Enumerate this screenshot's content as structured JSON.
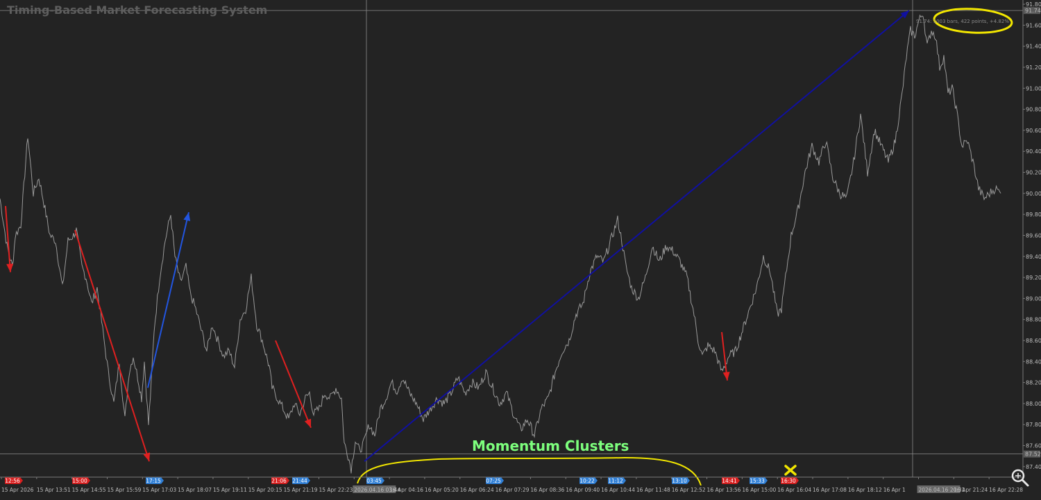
{
  "chart_data": {
    "type": "line",
    "title": "Timing-Based Market Forecasting System",
    "xlabel": "",
    "ylabel": "",
    "grid": false,
    "ylim": [
      87.3,
      91.84
    ],
    "y_ticks": [
      91.8,
      91.6,
      91.4,
      91.2,
      91.0,
      90.8,
      90.6,
      90.4,
      90.2,
      90.0,
      89.8,
      89.6,
      89.4,
      89.2,
      89.0,
      88.8,
      88.6,
      88.4,
      88.2,
      88.0,
      87.8,
      87.6,
      87.4
    ],
    "y_tick_labels": [
      "91.80",
      "91.60",
      "91.40",
      "91.20",
      "91.00",
      "90.80",
      "90.60",
      "90.40",
      "90.20",
      "90.00",
      "89.80",
      "89.60",
      "89.40",
      "89.20",
      "89.00",
      "88.80",
      "88.60",
      "88.40",
      "88.20",
      "88.00",
      "87.80",
      "87.60",
      "87.40"
    ],
    "x_tick_labels": [
      "15 Apr 2026",
      "15 Apr 13:51",
      "15 Apr 14:55",
      "15 Apr 15:59",
      "15 Apr 17:03",
      "15 Apr 18:07",
      "15 Apr 19:11",
      "15 Apr 20:15",
      "15 Apr 21:19",
      "15 Apr 22:23",
      "2026.04.16 03:44",
      "16 Apr 04:16",
      "16 Apr 05:20",
      "16 Apr 06:24",
      "16 Apr 07:29",
      "16 Apr 08:36",
      "16 Apr 09:40",
      "16 Apr 10:44",
      "16 Apr 11:48",
      "16 Apr 12:52",
      "16 Apr 13:56",
      "16 Apr 15:00",
      "16 Apr 16:04",
      "16 Apr 17:08",
      "16 Apr 18:12",
      "16 Apr 1",
      "2026.04.16 20:31",
      "16 Apr 21:24",
      "16 Apr 22:28"
    ],
    "price_series": {
      "name": "",
      "x_index": [
        0,
        10,
        18,
        22,
        30,
        40,
        48,
        56,
        62,
        72,
        80,
        90,
        98,
        106,
        110,
        118,
        124,
        132,
        140,
        148,
        156,
        164,
        172,
        180,
        186,
        192,
        200,
        204,
        208,
        214,
        218,
        222,
        230,
        238,
        246,
        252,
        260,
        268,
        274,
        282,
        290,
        298,
        306,
        314,
        322,
        330,
        338,
        346,
        354,
        362,
        370,
        378,
        384,
        388,
        392,
        400,
        408,
        416,
        424,
        432,
        440,
        446,
        452,
        460,
        468,
        476,
        484,
        492,
        496,
        500,
        506,
        512,
        518,
        524,
        532,
        540,
        548,
        556,
        564,
        572,
        580,
        590,
        600,
        610,
        620,
        630,
        640,
        650,
        660,
        670,
        680,
        690,
        700,
        710,
        720,
        730,
        740,
        750,
        760,
        770,
        780,
        790,
        800,
        810,
        820,
        830,
        840,
        850,
        860,
        870,
        880,
        890,
        896,
        902,
        910,
        920,
        930,
        940,
        950,
        960,
        970,
        980,
        990,
        1000,
        1006,
        1012,
        1020,
        1030,
        1040,
        1050,
        1060,
        1070,
        1080,
        1090,
        1100,
        1110,
        1120,
        1126,
        1132,
        1140,
        1150,
        1160,
        1170,
        1180,
        1190,
        1200,
        1210,
        1220,
        1230,
        1240,
        1250,
        1260,
        1270,
        1280,
        1290,
        1300,
        1306,
        1312,
        1318,
        1324,
        1330,
        1336,
        1342,
        1348,
        1354,
        1360,
        1366,
        1372,
        1378,
        1386,
        1394,
        1402,
        1410,
        1418,
        1426,
        1434,
        1442
      ],
      "values": [
        89.95,
        89.5,
        89.3,
        89.6,
        89.7,
        90.55,
        90.0,
        90.15,
        89.95,
        89.6,
        89.55,
        89.1,
        89.55,
        89.6,
        89.65,
        89.3,
        89.2,
        88.95,
        89.1,
        88.7,
        88.3,
        88.0,
        88.4,
        87.85,
        88.3,
        88.45,
        88.2,
        88.05,
        88.4,
        87.8,
        88.2,
        88.7,
        89.2,
        89.55,
        89.8,
        89.4,
        89.15,
        89.3,
        89.05,
        88.9,
        88.7,
        88.5,
        88.75,
        88.6,
        88.45,
        88.5,
        88.35,
        88.8,
        88.9,
        89.2,
        88.75,
        88.6,
        88.45,
        88.35,
        88.15,
        88.05,
        87.95,
        87.85,
        88.0,
        87.9,
        88.05,
        88.1,
        87.9,
        87.95,
        88.1,
        88.05,
        88.15,
        88.05,
        87.62,
        87.55,
        87.38,
        87.65,
        87.55,
        87.62,
        87.8,
        87.7,
        87.95,
        88.05,
        88.2,
        88.12,
        88.25,
        88.1,
        88.0,
        87.85,
        87.95,
        88.05,
        88.0,
        88.1,
        88.25,
        88.1,
        88.2,
        88.15,
        88.3,
        88.15,
        88.0,
        88.1,
        87.9,
        87.75,
        87.85,
        87.7,
        87.95,
        88.05,
        88.3,
        88.5,
        88.6,
        88.85,
        88.95,
        89.25,
        89.4,
        89.35,
        89.55,
        89.75,
        89.55,
        89.3,
        89.1,
        89.0,
        89.2,
        89.5,
        89.35,
        89.5,
        89.45,
        89.35,
        89.2,
        88.85,
        88.6,
        88.45,
        88.55,
        88.5,
        88.3,
        88.45,
        88.5,
        88.7,
        88.9,
        89.1,
        89.4,
        89.25,
        88.85,
        88.9,
        89.2,
        89.6,
        89.85,
        90.2,
        90.45,
        90.3,
        90.5,
        90.15,
        90.0,
        89.95,
        90.3,
        90.75,
        90.2,
        90.6,
        90.45,
        90.3,
        90.5,
        90.95,
        91.3,
        91.55,
        91.5,
        91.64,
        91.72,
        91.4,
        91.55,
        91.5,
        91.2,
        91.3,
        90.95,
        91.0,
        90.8,
        90.45,
        90.5,
        90.3,
        90.05,
        89.95,
        90.0,
        90.05,
        90.0
      ]
    },
    "trend_arrows": [
      {
        "color": "#e02020",
        "from": [
          8,
          89.88
        ],
        "to": [
          15,
          89.25
        ]
      },
      {
        "color": "#e02020",
        "from": [
          108,
          89.65
        ],
        "to": [
          215,
          87.45
        ]
      },
      {
        "color": "#2255e0",
        "from": [
          213,
          88.15
        ],
        "to": [
          272,
          89.82
        ]
      },
      {
        "color": "#e02020",
        "from": [
          397,
          88.6
        ],
        "to": [
          448,
          87.77
        ]
      },
      {
        "color": "#1010a0",
        "from": [
          525,
          87.45
        ],
        "to": [
          1310,
          91.74
        ]
      },
      {
        "color": "#e02020",
        "from": [
          1040,
          88.68
        ],
        "to": [
          1048,
          88.22
        ]
      }
    ],
    "reference_lines": {
      "vertical_x_index": [
        528,
        1315
      ],
      "horizontal_values": [
        91.74,
        87.52
      ]
    },
    "price_flags": [
      {
        "label": "91.74",
        "value": 91.74
      },
      {
        "label": "87.52",
        "value": 87.52
      }
    ],
    "range_annotation": "91.74: 1003 bars, 422 points, +4.82%",
    "cluster_label": "Momentum Clusters",
    "time_markers": [
      {
        "label": "12:56",
        "x_index": 18,
        "color": "#d81e1e"
      },
      {
        "label": "15:00",
        "x_index": 115,
        "color": "#d81e1e"
      },
      {
        "label": "17:15",
        "x_index": 221,
        "color": "#2f7fd6"
      },
      {
        "label": "21:06",
        "x_index": 402,
        "color": "#d81e1e"
      },
      {
        "label": "21:44",
        "x_index": 432,
        "color": "#2f7fd6"
      },
      {
        "label": "03:45",
        "x_index": 539,
        "color": "#2f7fd6"
      },
      {
        "label": "07:25",
        "x_index": 711,
        "color": "#2f7fd6"
      },
      {
        "label": "10:22",
        "x_index": 846,
        "color": "#2f7fd6"
      },
      {
        "label": "11:12",
        "x_index": 887,
        "color": "#2f7fd6"
      },
      {
        "label": "13:10",
        "x_index": 979,
        "color": "#2f7fd6"
      },
      {
        "label": "14:41",
        "x_index": 1051,
        "color": "#d81e1e"
      },
      {
        "label": "15:33",
        "x_index": 1091,
        "color": "#2f7fd6"
      },
      {
        "label": "16:30",
        "x_index": 1136,
        "color": "#d81e1e"
      }
    ],
    "colors": {
      "background": "#232323",
      "price_line": "#9a9a9a",
      "annotation_yellow": "#f2e600",
      "axis_text": "#bdbdbd"
    }
  },
  "icons": {
    "zoom": "magnifier-zoom-icon",
    "cross": "yellow-cross-marker-icon"
  }
}
